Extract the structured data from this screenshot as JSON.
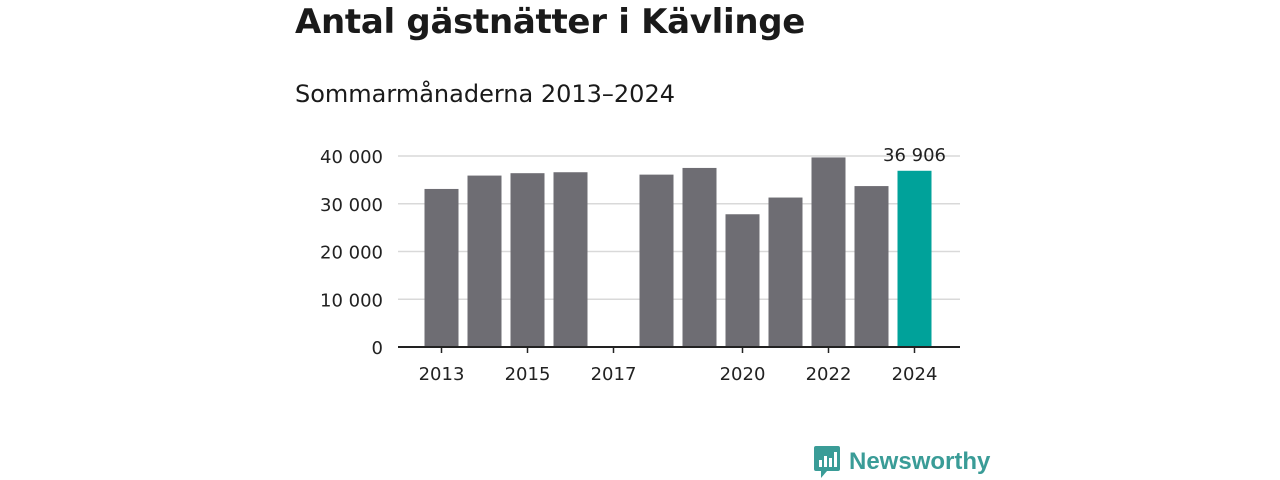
{
  "header": {
    "title": "Antal gästnätter i Kävlinge",
    "subtitle": "Sommarmånaderna 2013–2024"
  },
  "brand": {
    "name": "Newsworthy",
    "icon": "newsworthy-logo-icon",
    "color": "#3a9c97"
  },
  "colors": {
    "bar": "#6e6d73",
    "highlight": "#00a29a",
    "grid": "#d9d9d9",
    "axis": "#222222"
  },
  "chart_data": {
    "type": "bar",
    "categories": [
      "2013",
      "2014",
      "2015",
      "2016",
      "2017",
      "2018",
      "2019",
      "2020",
      "2021",
      "2022",
      "2023",
      "2024"
    ],
    "values": [
      33100,
      35900,
      36400,
      36600,
      null,
      36100,
      37500,
      27800,
      31300,
      39700,
      33700,
      36906
    ],
    "highlight_index": 11,
    "data_labels": [
      {
        "index": 11,
        "text": "36 906"
      }
    ],
    "x_tick_labels": [
      "2013",
      "2015",
      "2017",
      "2020",
      "2022",
      "2024"
    ],
    "y_ticks": [
      0,
      10000,
      20000,
      30000,
      40000
    ],
    "y_tick_labels": [
      "0",
      "10 000",
      "20 000",
      "30 000",
      "40 000"
    ],
    "ylim": [
      0,
      40000
    ],
    "grid": true,
    "legend": "none",
    "title": "Antal gästnätter i Kävlinge",
    "subtitle": "Sommarmånaderna 2013–2024",
    "xlabel": "",
    "ylabel": ""
  }
}
